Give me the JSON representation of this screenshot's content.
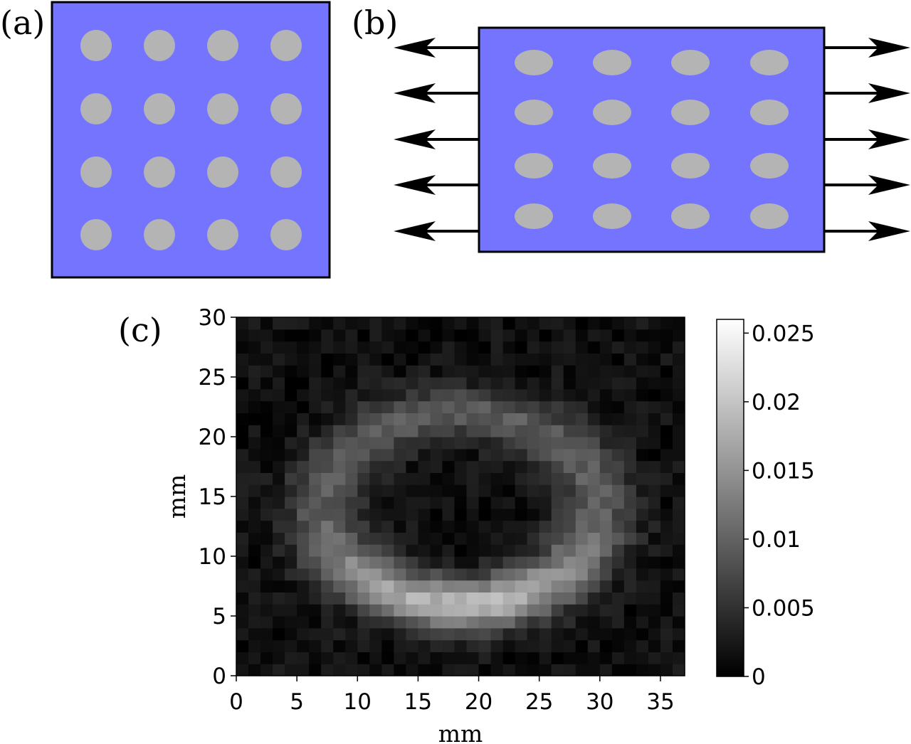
{
  "panels": {
    "a": {
      "label": "(a)",
      "sample_color": "#7474ff",
      "inclusion_color": "#b4b4b4",
      "grid": {
        "rows": 4,
        "cols": 4
      }
    },
    "b": {
      "label": "(b)",
      "sample_color": "#7474ff",
      "inclusion_color": "#b4b4b4",
      "grid": {
        "rows": 4,
        "cols": 4
      },
      "arrows_per_side": 5,
      "arrow_directions": [
        "left",
        "right"
      ]
    },
    "c": {
      "label": "(c)"
    }
  },
  "chart_data": {
    "type": "heatmap",
    "xlabel": "mm",
    "ylabel": "mm",
    "xlim": [
      0,
      37
    ],
    "ylim": [
      0,
      30
    ],
    "xticks": [
      0,
      5,
      10,
      15,
      20,
      25,
      30,
      35
    ],
    "yticks": [
      0,
      5,
      10,
      15,
      20,
      25,
      30
    ],
    "colormap": "gray",
    "colorbar": {
      "min": 0,
      "max": 0.026,
      "ticks": [
        0,
        0.005,
        0.01,
        0.015,
        0.02,
        0.025
      ],
      "tick_labels": [
        "0",
        "0.005",
        "0.01",
        "0.015",
        "0.02",
        "0.025"
      ]
    },
    "pattern": {
      "description": "U-shaped ring of elevated values",
      "center_mm": [
        18.5,
        14.0
      ],
      "radius_x_mm": 11.3,
      "radius_y_mm": 8.0,
      "peak_value": 0.019,
      "background_value": 0.0015
    }
  }
}
